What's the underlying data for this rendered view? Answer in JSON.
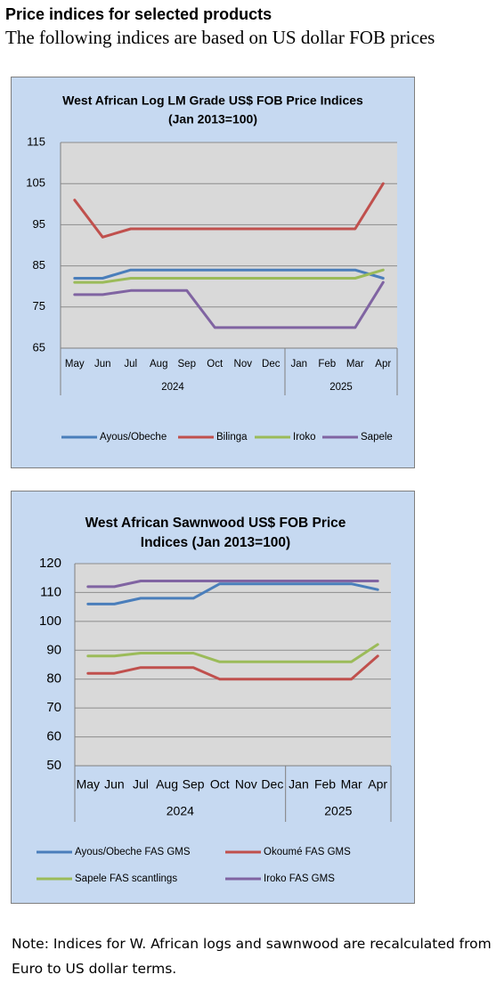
{
  "header": {
    "title": "Price indices for selected products",
    "subtitle": "The following indices are based on US dollar FOB prices"
  },
  "note": "Note: Indices for W. African logs and sawnwood are recalculated from Euro to US dollar terms.",
  "chart_data": [
    {
      "type": "line",
      "title_lines": [
        "West African Log LM Grade US$ FOB Price Indices",
        "(Jan 2013=100)"
      ],
      "categories": [
        "May",
        "Jun",
        "Jul",
        "Aug",
        "Sep",
        "Oct",
        "Nov",
        "Dec",
        "Jan",
        "Feb",
        "Mar",
        "Apr"
      ],
      "year_groups": [
        {
          "label": "2024",
          "count": 8
        },
        {
          "label": "2025",
          "count": 4
        }
      ],
      "ylim": [
        65,
        115
      ],
      "yticks": [
        65,
        75,
        85,
        95,
        105,
        115
      ],
      "grid": true,
      "legend_position": "bottom",
      "series": [
        {
          "name": "Ayous/Obeche",
          "color": "#4a7ebb",
          "values": [
            82,
            82,
            84,
            84,
            84,
            84,
            84,
            84,
            84,
            84,
            84,
            82
          ]
        },
        {
          "name": "Bilinga",
          "color": "#c0504d",
          "values": [
            101,
            92,
            94,
            94,
            94,
            94,
            94,
            94,
            94,
            94,
            94,
            105
          ]
        },
        {
          "name": "Iroko",
          "color": "#9bbb59",
          "values": [
            81,
            81,
            82,
            82,
            82,
            82,
            82,
            82,
            82,
            82,
            82,
            84
          ]
        },
        {
          "name": "Sapele",
          "color": "#8064a2",
          "values": [
            78,
            78,
            79,
            79,
            79,
            70,
            70,
            70,
            70,
            70,
            70,
            81
          ]
        }
      ]
    },
    {
      "type": "line",
      "title_lines": [
        "West African Sawnwood US$ FOB Price",
        "Indices (Jan 2013=100)"
      ],
      "categories": [
        "May",
        "Jun",
        "Jul",
        "Aug",
        "Sep",
        "Oct",
        "Nov",
        "Dec",
        "Jan",
        "Feb",
        "Mar",
        "Apr"
      ],
      "year_groups": [
        {
          "label": "2024",
          "count": 8
        },
        {
          "label": "2025",
          "count": 4
        }
      ],
      "ylim": [
        50,
        120
      ],
      "yticks": [
        50,
        60,
        70,
        80,
        90,
        100,
        110,
        120
      ],
      "grid": true,
      "legend_position": "bottom",
      "series": [
        {
          "name": "Ayous/Obeche  FAS GMS",
          "color": "#4a7ebb",
          "values": [
            106,
            106,
            108,
            108,
            108,
            113,
            113,
            113,
            113,
            113,
            113,
            111
          ]
        },
        {
          "name": "Okoumé  FAS GMS",
          "color": "#c0504d",
          "values": [
            82,
            82,
            84,
            84,
            84,
            80,
            80,
            80,
            80,
            80,
            80,
            88
          ]
        },
        {
          "name": "Sapele FAS scantlings",
          "color": "#9bbb59",
          "values": [
            88,
            88,
            89,
            89,
            89,
            86,
            86,
            86,
            86,
            86,
            86,
            92
          ]
        },
        {
          "name": "Iroko FAS GMS",
          "color": "#8064a2",
          "values": [
            112,
            112,
            114,
            114,
            114,
            114,
            114,
            114,
            114,
            114,
            114,
            114
          ]
        }
      ]
    }
  ]
}
